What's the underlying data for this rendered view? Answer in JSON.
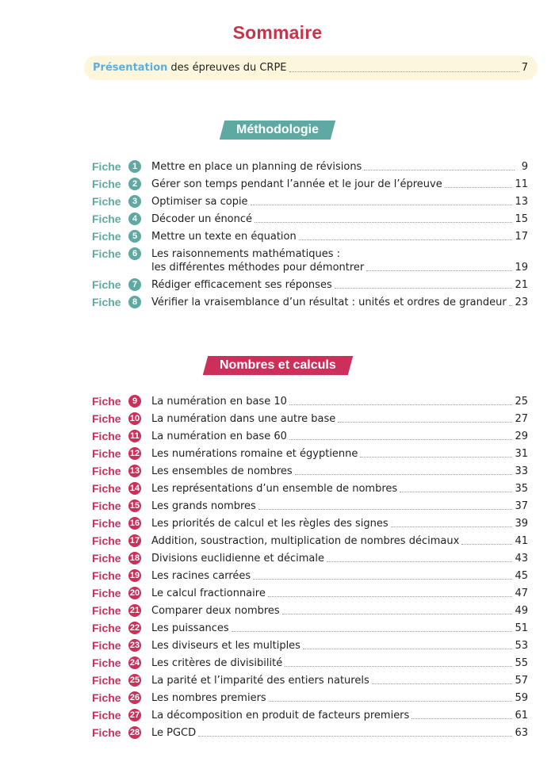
{
  "title": "Sommaire",
  "presentation": {
    "highlight": "Présentation",
    "text": "des épreuves du CRPE",
    "page": "7"
  },
  "colors": {
    "title": "#c8334a",
    "methodologie": "#5fa9a3",
    "nombres": "#cc2f5a",
    "presentation": "#5aaee0",
    "band": "#fcf7dc"
  },
  "fiche_label": "Fiche",
  "sections": [
    {
      "title": "Méthodologie",
      "items": [
        {
          "num": "1",
          "lines": [
            "Mettre en place un planning de révisions"
          ],
          "page": "9"
        },
        {
          "num": "2",
          "lines": [
            "Gérer son temps pendant l’année et le jour de l’épreuve"
          ],
          "page": "11"
        },
        {
          "num": "3",
          "lines": [
            "Optimiser sa copie"
          ],
          "page": "13"
        },
        {
          "num": "4",
          "lines": [
            "Décoder un énoncé"
          ],
          "page": "15"
        },
        {
          "num": "5",
          "lines": [
            "Mettre un texte en équation"
          ],
          "page": "17"
        },
        {
          "num": "6",
          "lines": [
            "Les raisonnements mathématiques :",
            "les différentes méthodes pour démontrer"
          ],
          "page": "19"
        },
        {
          "num": "7",
          "lines": [
            "Rédiger efficacement ses réponses"
          ],
          "page": "21"
        },
        {
          "num": "8",
          "lines": [
            "Vérifier la vraisemblance d’un résultat : unités et ordres de grandeur"
          ],
          "page": "23"
        }
      ]
    },
    {
      "title": "Nombres et calculs",
      "items": [
        {
          "num": "9",
          "lines": [
            "La numération en base 10"
          ],
          "page": "25"
        },
        {
          "num": "10",
          "lines": [
            "La numération dans une autre base"
          ],
          "page": "27"
        },
        {
          "num": "11",
          "lines": [
            "La numération en base 60"
          ],
          "page": "29"
        },
        {
          "num": "12",
          "lines": [
            "Les numérations romaine et égyptienne"
          ],
          "page": "31"
        },
        {
          "num": "13",
          "lines": [
            "Les ensembles de nombres"
          ],
          "page": "33"
        },
        {
          "num": "14",
          "lines": [
            "Les représentations d’un ensemble de nombres"
          ],
          "page": "35"
        },
        {
          "num": "15",
          "lines": [
            "Les grands nombres"
          ],
          "page": "37"
        },
        {
          "num": "16",
          "lines": [
            "Les priorités de calcul et les règles des signes"
          ],
          "page": "39"
        },
        {
          "num": "17",
          "lines": [
            "Addition, soustraction, multiplication de nombres décimaux"
          ],
          "page": "41"
        },
        {
          "num": "18",
          "lines": [
            "Divisions euclidienne et décimale"
          ],
          "page": "43"
        },
        {
          "num": "19",
          "lines": [
            "Les racines carrées"
          ],
          "page": "45"
        },
        {
          "num": "20",
          "lines": [
            "Le calcul fractionnaire"
          ],
          "page": "47"
        },
        {
          "num": "21",
          "lines": [
            "Comparer deux nombres"
          ],
          "page": "49"
        },
        {
          "num": "22",
          "lines": [
            "Les puissances"
          ],
          "page": "51"
        },
        {
          "num": "23",
          "lines": [
            "Les diviseurs et les multiples"
          ],
          "page": "53"
        },
        {
          "num": "24",
          "lines": [
            "Les critères de divisibilité"
          ],
          "page": "55"
        },
        {
          "num": "25",
          "lines": [
            "La parité et l’imparité des entiers naturels"
          ],
          "page": "57"
        },
        {
          "num": "26",
          "lines": [
            "Les nombres premiers"
          ],
          "page": "59"
        },
        {
          "num": "27",
          "lines": [
            "La décomposition en produit de facteurs premiers"
          ],
          "page": "61"
        },
        {
          "num": "28",
          "lines": [
            "Le PGCD"
          ],
          "page": "63"
        }
      ]
    }
  ]
}
